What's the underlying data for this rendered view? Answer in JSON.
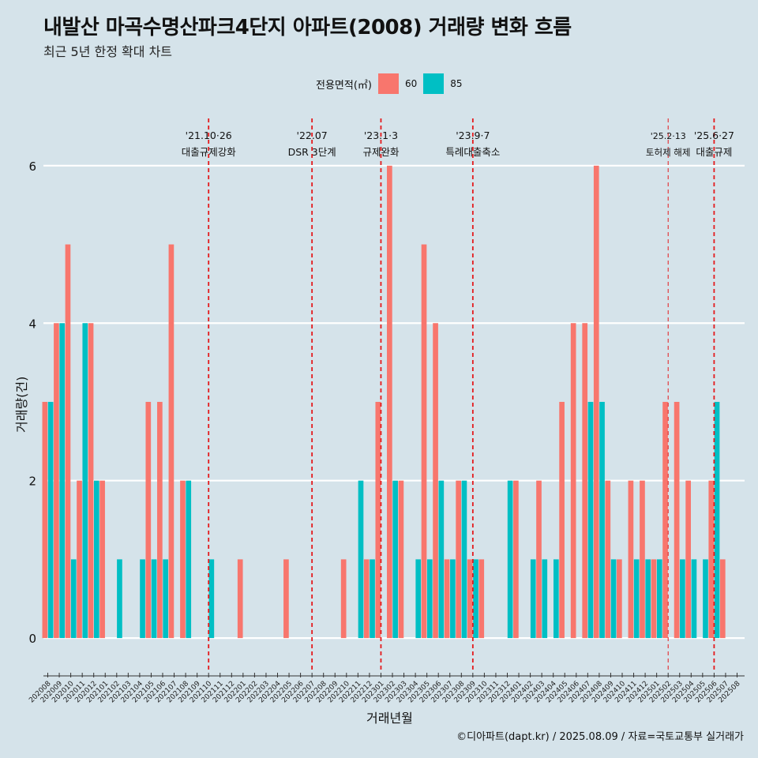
{
  "chart_data": {
    "type": "bar",
    "title": "내발산 마곡수명산파크4단지 아파트(2008) 거래량 변화 흐름",
    "subtitle": "최근 5년 한정 확대 차트",
    "xlabel": "거래년월",
    "ylabel": "거래량(건)",
    "legend_title": "전용면적(㎡)",
    "ylim": [
      -0.4,
      6.6
    ],
    "yticks": [
      0,
      2,
      4,
      6
    ],
    "categories": [
      "202008",
      "202009",
      "202010",
      "202011",
      "202012",
      "202101",
      "202102",
      "202103",
      "202104",
      "202105",
      "202106",
      "202107",
      "202108",
      "202109",
      "202110",
      "202111",
      "202112",
      "202201",
      "202202",
      "202203",
      "202204",
      "202205",
      "202206",
      "202207",
      "202208",
      "202209",
      "202210",
      "202211",
      "202212",
      "202301",
      "202302",
      "202303",
      "202304",
      "202305",
      "202306",
      "202307",
      "202308",
      "202309",
      "202310",
      "202311",
      "202312",
      "202401",
      "202402",
      "202403",
      "202404",
      "202405",
      "202406",
      "202407",
      "202408",
      "202409",
      "202410",
      "202411",
      "202412",
      "202501",
      "202502",
      "202503",
      "202504",
      "202505",
      "202506",
      "202507",
      "202508"
    ],
    "series": [
      {
        "name": "60",
        "color": "#f8766d",
        "values": [
          3,
          4,
          5,
          2,
          4,
          2,
          0,
          0,
          0,
          3,
          3,
          5,
          2,
          0,
          0,
          0,
          0,
          1,
          0,
          0,
          0,
          1,
          0,
          0,
          0,
          0,
          1,
          0,
          1,
          3,
          6,
          2,
          0,
          5,
          4,
          1,
          2,
          1,
          1,
          0,
          0,
          2,
          0,
          2,
          0,
          3,
          4,
          4,
          6,
          2,
          1,
          2,
          2,
          1,
          3,
          3,
          2,
          0,
          2,
          1,
          0
        ]
      },
      {
        "name": "85",
        "color": "#00bfc4",
        "values": [
          3,
          4,
          1,
          4,
          2,
          0,
          1,
          0,
          1,
          1,
          1,
          0,
          2,
          0,
          1,
          0,
          0,
          0,
          0,
          0,
          0,
          0,
          0,
          0,
          0,
          0,
          0,
          2,
          1,
          0,
          2,
          0,
          1,
          1,
          2,
          1,
          2,
          1,
          0,
          0,
          2,
          0,
          1,
          1,
          1,
          0,
          0,
          3,
          3,
          1,
          0,
          1,
          1,
          1,
          0,
          1,
          1,
          1,
          3,
          0,
          0
        ]
      }
    ],
    "events": [
      {
        "x": "202110",
        "date": "'21.10·26",
        "label": "대출규제강화"
      },
      {
        "x": "202207",
        "date": "'22.07",
        "label": "DSR 3단계"
      },
      {
        "x": "202301",
        "date": "'23.1·3",
        "label": "규제완화"
      },
      {
        "x": "202309",
        "date": "'23.9·7",
        "label": "특례대출축소"
      },
      {
        "x": "202502",
        "date": "'25.2·13",
        "label": "토허제 해제"
      },
      {
        "x": "202506",
        "date": "'25.6·27",
        "label": "대출규제"
      }
    ]
  },
  "caption": "©디아파트(dapt.kr) / 2025.08.09 / 자료=국토교통부 실거래가"
}
